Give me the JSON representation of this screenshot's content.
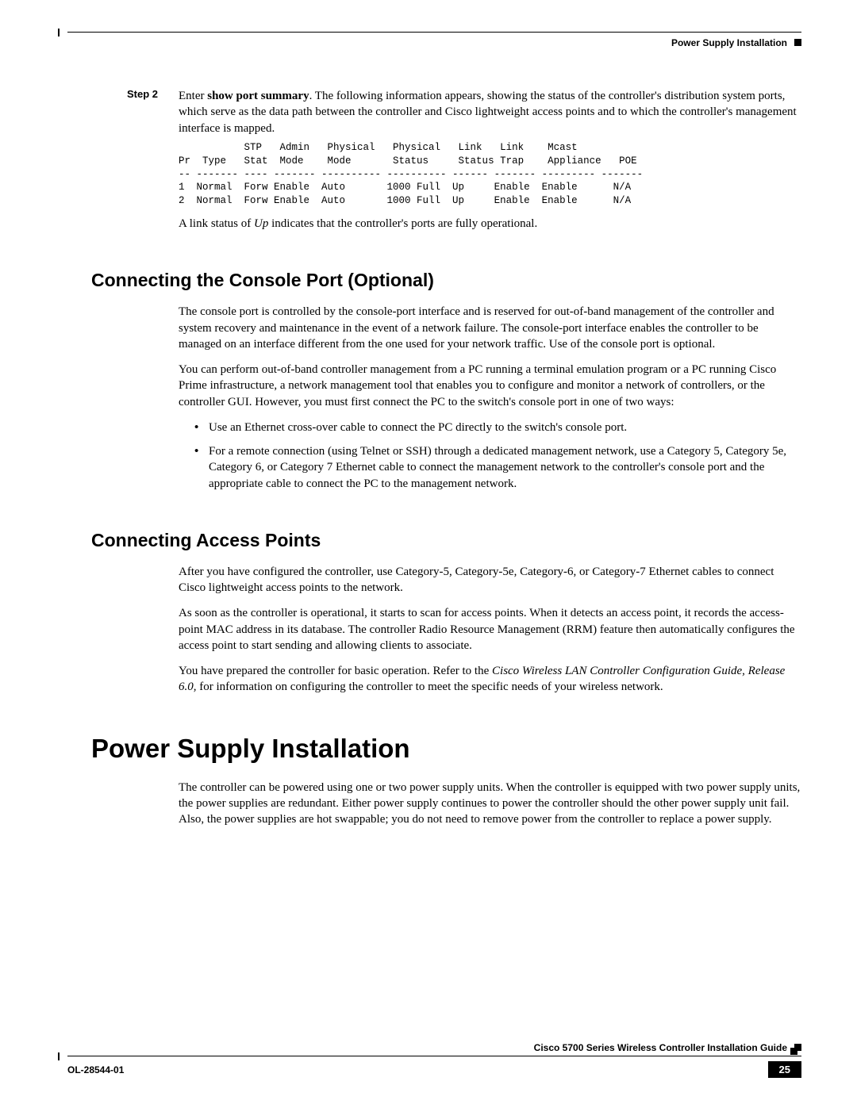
{
  "header": {
    "section_label": "Power Supply Installation"
  },
  "step2": {
    "label": "Step 2",
    "lead_before": "Enter ",
    "lead_bold": "show port summary",
    "lead_after": ". The following information appears, showing the status of the controller's distribution system ports, which serve as the data path between the controller and Cisco lightweight access points and to which the controller's management interface is mapped."
  },
  "mono": "           STP   Admin   Physical   Physical   Link   Link    Mcast\nPr  Type   Stat  Mode    Mode       Status     Status Trap    Appliance   POE\n-- ------- ---- ------- ---------- ---------- ------ ------- --------- -------\n1  Normal  Forw Enable  Auto       1000 Full  Up     Enable  Enable      N/A\n2  Normal  Forw Enable  Auto       1000 Full  Up     Enable  Enable      N/A",
  "link_status_before": "A link status of ",
  "link_status_italic": "Up",
  "link_status_after": " indicates that the controller's ports are fully operational.",
  "section_console": {
    "title": "Connecting the Console Port (Optional)",
    "p1": "The console port is controlled by the console-port interface and is reserved for out-of-band management of the controller and system recovery and maintenance in the event of a network failure. The console-port interface enables the controller to be managed on an interface different from the one used for your network traffic. Use of the console port is optional.",
    "p2": "You can perform out-of-band controller management from a PC running a terminal emulation program or a PC running Cisco Prime infrastructure, a network management tool that enables you to configure and monitor a network of controllers, or the controller GUI. However, you must first connect the PC to the switch's console port in one of two ways:",
    "bullets": [
      "Use an Ethernet cross-over cable to connect the PC directly to the switch's console port.",
      "For a remote connection (using Telnet or SSH) through a dedicated management network, use a Category 5, Category 5e, Category 6, or Category 7 Ethernet cable to connect the management network to the controller's console port and the appropriate cable to connect the PC to the management network."
    ]
  },
  "section_ap": {
    "title": "Connecting Access Points",
    "p1": "After you have configured the controller, use Category-5, Category-5e, Category-6, or Category-7 Ethernet cables to connect Cisco lightweight access points to the network.",
    "p2": "As soon as the controller is operational, it starts to scan for access points. When it detects an access point, it records the access-point MAC address in its database. The controller Radio Resource Management (RRM) feature then automatically configures the access point to start sending and allowing clients to associate.",
    "p3_before": "You have prepared the controller for basic operation. Refer to the ",
    "p3_italic": "Cisco Wireless LAN Controller Configuration Guide, Release 6.0,",
    "p3_after": " for information on configuring the controller to meet the specific needs of your wireless network."
  },
  "chapter": {
    "title": "Power Supply Installation",
    "p1": "The controller can be powered using one or two power supply units. When the controller is equipped with two power supply units, the power supplies are redundant. Either power supply continues to power the controller should the other power supply unit fail. Also, the power supplies are hot swappable; you do not need to remove power from the controller to replace a power supply."
  },
  "footer": {
    "guide": "Cisco 5700 Series Wireless Controller Installation Guide",
    "doc": "OL-28544-01",
    "page": "25"
  }
}
